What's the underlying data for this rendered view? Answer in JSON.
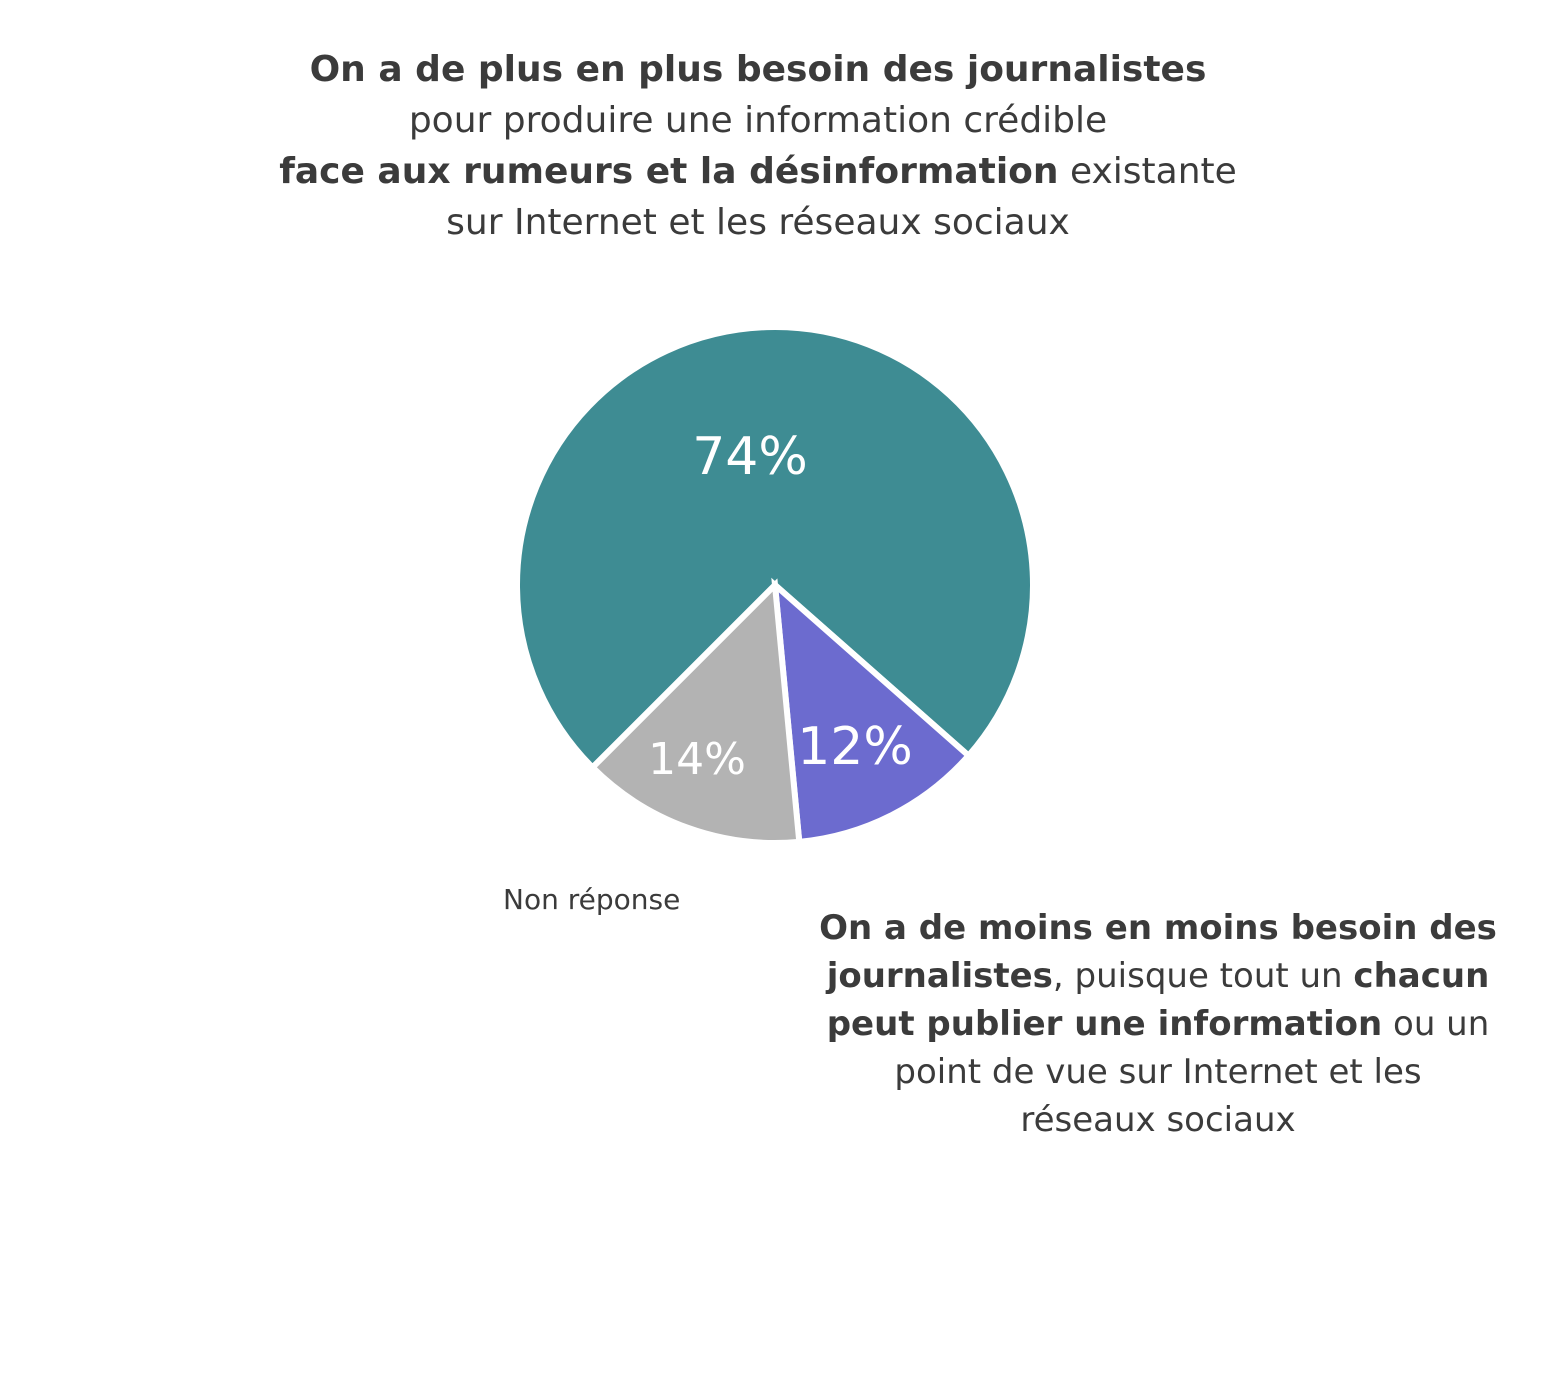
{
  "chart_data": {
    "type": "pie",
    "slices": [
      {
        "label": "",
        "value": 74,
        "display": "74%",
        "color": "#3e8c93"
      },
      {
        "label": "",
        "value": 12,
        "display": "12%",
        "color": "#6c6bcf"
      },
      {
        "label": "Non réponse",
        "value": 14,
        "display": "14%",
        "color": "#b3b3b3"
      }
    ]
  },
  "annotations": {
    "top": [
      [
        {
          "text": "On a de plus en plus besoin des journalistes",
          "bold": true
        }
      ],
      [
        {
          "text": "pour produire une information crédible",
          "bold": false
        }
      ],
      [
        {
          "text": "face aux rumeurs et la désinformation",
          "bold": true
        },
        {
          "text": " existante",
          "bold": false
        }
      ],
      [
        {
          "text": "sur Internet et les réseaux sociaux",
          "bold": false
        }
      ]
    ],
    "bottom": [
      [
        {
          "text": "On a de moins en moins besoin des",
          "bold": true
        }
      ],
      [
        {
          "text": "journalistes",
          "bold": true
        },
        {
          "text": ", puisque tout un ",
          "bold": false
        },
        {
          "text": "chacun",
          "bold": true
        }
      ],
      [
        {
          "text": "peut publier une information",
          "bold": true
        },
        {
          "text": " ou un",
          "bold": false
        }
      ],
      [
        {
          "text": "point de vue sur Internet et les",
          "bold": false
        }
      ],
      [
        {
          "text": "réseaux sociaux",
          "bold": false
        }
      ]
    ],
    "non_response": "Non réponse"
  }
}
